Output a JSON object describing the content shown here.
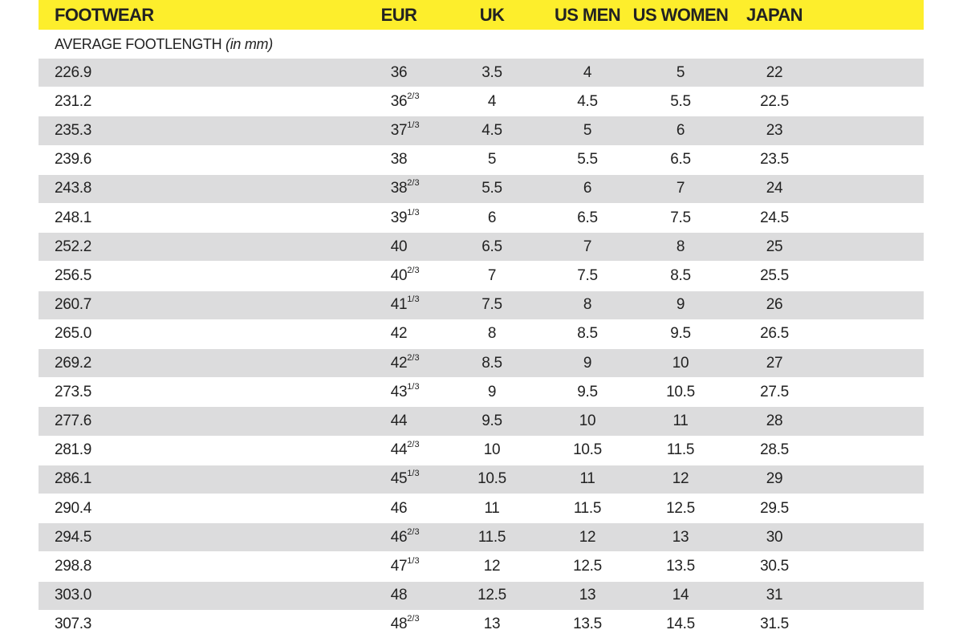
{
  "header": {
    "columns": [
      "FOOTWEAR",
      "EUR",
      "UK",
      "US MEN",
      "US WOMEN",
      "JAPAN"
    ]
  },
  "subheader": {
    "label": "AVERAGE FOOTLENGTH",
    "unit": "(in mm)"
  },
  "table": {
    "rows": [
      {
        "cells": [
          "226.9",
          "36",
          "3.5",
          "4",
          "5",
          "22"
        ]
      },
      {
        "cells": [
          "231.2",
          "36",
          "4",
          "4.5",
          "5.5",
          "22.5"
        ],
        "fraction": "2/3"
      },
      {
        "cells": [
          "235.3",
          "37",
          "4.5",
          "5",
          "6",
          "23"
        ],
        "fraction": "1/3"
      },
      {
        "cells": [
          "239.6",
          "38",
          "5",
          "5.5",
          "6.5",
          "23.5"
        ]
      },
      {
        "cells": [
          "243.8",
          "38",
          "5.5",
          "6",
          "7",
          "24"
        ],
        "fraction": "2/3"
      },
      {
        "cells": [
          "248.1",
          "39",
          "6",
          "6.5",
          "7.5",
          "24.5"
        ],
        "fraction": "1/3"
      },
      {
        "cells": [
          "252.2",
          "40",
          "6.5",
          "7",
          "8",
          "25"
        ]
      },
      {
        "cells": [
          "256.5",
          "40",
          "7",
          "7.5",
          "8.5",
          "25.5"
        ],
        "fraction": "2/3"
      },
      {
        "cells": [
          "260.7",
          "41",
          "7.5",
          "8",
          "9",
          "26"
        ],
        "fraction": "1/3"
      },
      {
        "cells": [
          "265.0",
          "42",
          "8",
          "8.5",
          "9.5",
          "26.5"
        ]
      },
      {
        "cells": [
          "269.2",
          "42",
          "8.5",
          "9",
          "10",
          "27"
        ],
        "fraction": "2/3"
      },
      {
        "cells": [
          "273.5",
          "43",
          "9",
          "9.5",
          "10.5",
          "27.5"
        ],
        "fraction": "1/3"
      },
      {
        "cells": [
          "277.6",
          "44",
          "9.5",
          "10",
          "11",
          "28"
        ]
      },
      {
        "cells": [
          "281.9",
          "44",
          "10",
          "10.5",
          "11.5",
          "28.5"
        ],
        "fraction": "2/3"
      },
      {
        "cells": [
          "286.1",
          "45",
          "10.5",
          "11",
          "12",
          "29"
        ],
        "fraction": "1/3"
      },
      {
        "cells": [
          "290.4",
          "46",
          "11",
          "11.5",
          "12.5",
          "29.5"
        ]
      },
      {
        "cells": [
          "294.5",
          "46",
          "11.5",
          "12",
          "13",
          "30"
        ],
        "fraction": "2/3"
      },
      {
        "cells": [
          "298.8",
          "47",
          "12",
          "12.5",
          "13.5",
          "30.5"
        ],
        "fraction": "1/3"
      },
      {
        "cells": [
          "303.0",
          "48",
          "12.5",
          "13",
          "14",
          "31"
        ]
      },
      {
        "cells": [
          "307.3",
          "48",
          "13",
          "13.5",
          "14.5",
          "31.5"
        ],
        "fraction": "2/3"
      }
    ]
  }
}
